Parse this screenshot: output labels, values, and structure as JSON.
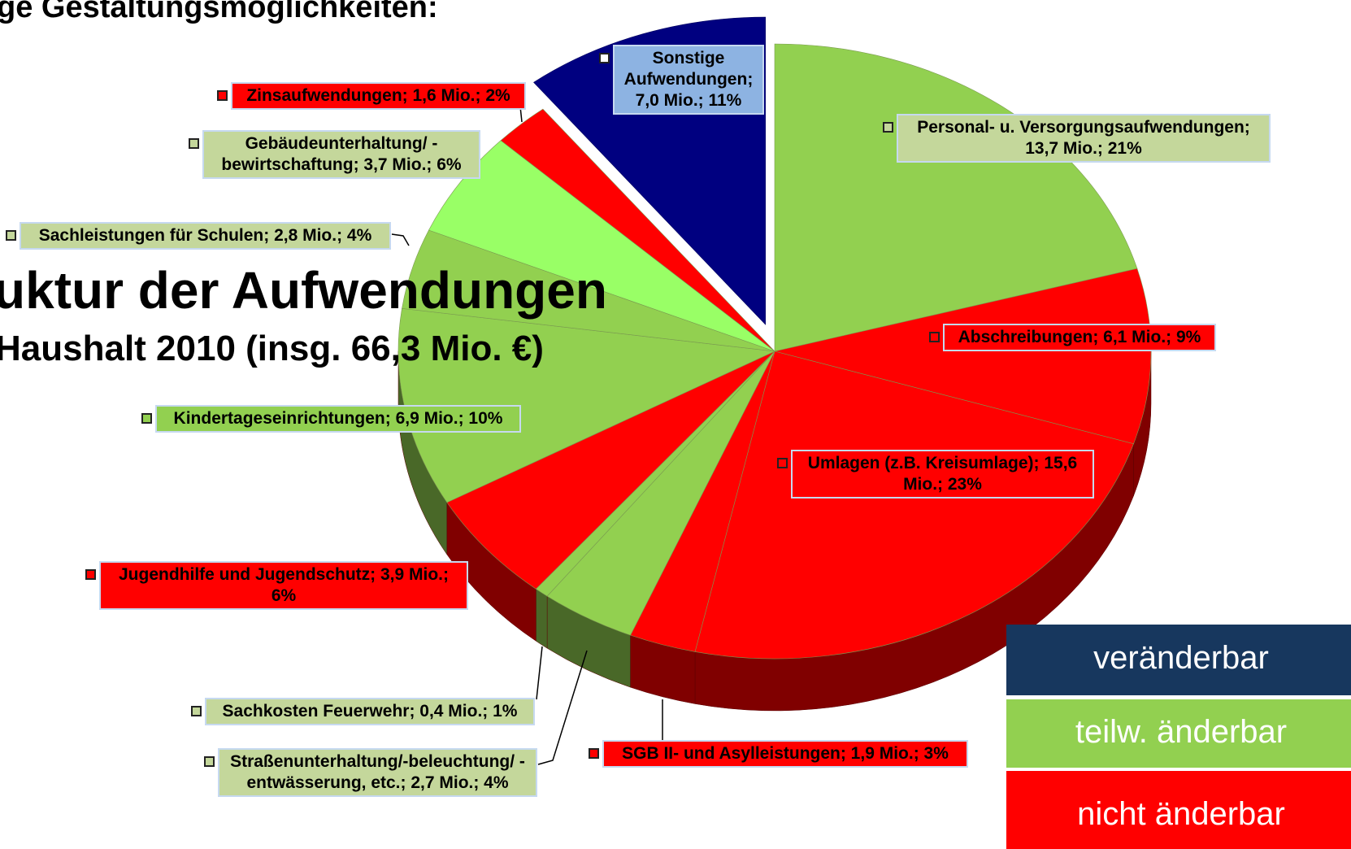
{
  "chart_data": {
    "type": "pie",
    "title": "ge Gestaltungsmöglichkeiten:",
    "heading": "uktur der Aufwendungen",
    "subtitle": "Haushalt 2010 (insg. 66,3 Mio. €)",
    "values": [
      13.7,
      6.1,
      15.6,
      1.9,
      2.7,
      0.4,
      3.9,
      6.9,
      2.8,
      3.7,
      1.6,
      7.0
    ],
    "value_labels": [
      "Personal- u. Versorgungsaufwendungen; 13,7 Mio.; 21%",
      "Abschreibungen; 6,1 Mio.; 9%",
      "Umlagen (z.B. Kreisumlage); 15,6 Mio.; 23%",
      "SGB II- und Asylleistungen; 1,9 Mio.; 3%",
      "Straßenunterhaltung/-beleuchtung/ -entwässerung, etc.; 2,7 Mio.; 4%",
      "Sachkosten Feuerwehr; 0,4 Mio.; 1%",
      "Jugendhilfe und Jugendschutz; 3,9 Mio.; 6%",
      "Kindertageseinrichtungen; 6,9 Mio.; 10%",
      "Sachleistungen für Schulen; 2,8 Mio.; 4%",
      "Gebäudeunterhaltung/ -bewirtschaftung; 3,7 Mio.; 6%",
      "Zinsaufwendungen; 1,6 Mio.; 2%",
      "Sonstige Aufwendungen; 7,0 Mio.; 11%"
    ],
    "colors": [
      "#92d050",
      "#ff0000",
      "#ff0000",
      "#ff0000",
      "#92d050",
      "#92d050",
      "#ff0000",
      "#92d050",
      "#92d050",
      "#99ff66",
      "#ff0000",
      "#000080"
    ],
    "label_colors": [
      "#c4d79b",
      "#ff0000",
      "#ff0000",
      "#ff0000",
      "#c4d79b",
      "#c4d79b",
      "#ff0000",
      "#92d050",
      "#c4d79b",
      "#c4d79b",
      "#ff0000",
      "#8db3e2"
    ],
    "legend": [
      {
        "label": "veränderbar",
        "color": "#17375e"
      },
      {
        "label": "teilw. änderbar",
        "color": "#92d050"
      },
      {
        "label": "nicht änderbar",
        "color": "#ff0000"
      }
    ]
  }
}
